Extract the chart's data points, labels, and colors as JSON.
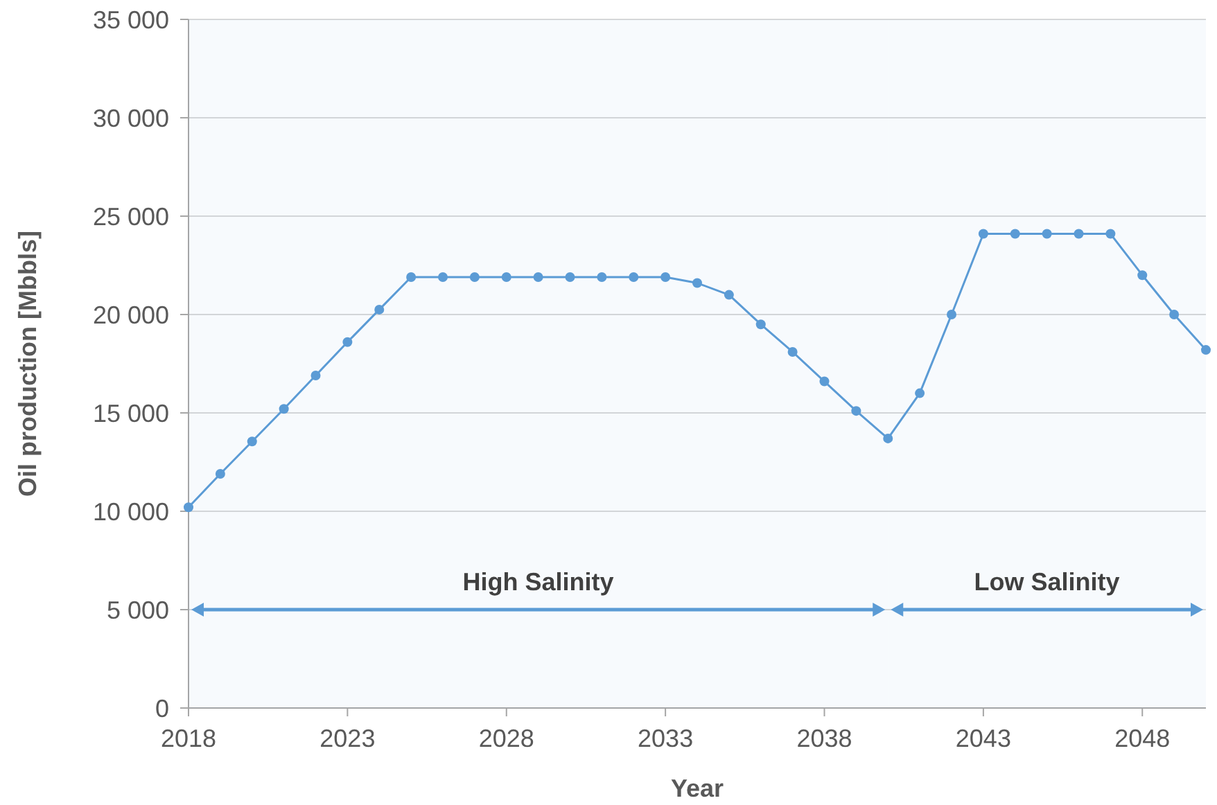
{
  "chart_data": {
    "type": "line",
    "xlabel": "Year",
    "ylabel": "Oil production [Mbbls]",
    "x": [
      2018,
      2019,
      2020,
      2021,
      2022,
      2023,
      2024,
      2025,
      2026,
      2027,
      2028,
      2029,
      2030,
      2031,
      2032,
      2033,
      2034,
      2035,
      2036,
      2037,
      2038,
      2039,
      2040,
      2041,
      2042,
      2043,
      2044,
      2045,
      2046,
      2047,
      2048,
      2049,
      2050
    ],
    "series": [
      {
        "color": "#5b9bd5",
        "values": [
          10200,
          11900,
          13550,
          15200,
          16900,
          18600,
          20250,
          21900,
          21900,
          21900,
          21900,
          21900,
          21900,
          21900,
          21900,
          21900,
          21600,
          21000,
          19500,
          18100,
          16600,
          15100,
          13700,
          16000,
          20000,
          24100,
          24100,
          24100,
          24100,
          24100,
          22000,
          20000,
          18200
        ]
      }
    ],
    "xlim": [
      2018,
      2050
    ],
    "xticks": [
      2018,
      2023,
      2028,
      2033,
      2038,
      2043,
      2048
    ],
    "ylim": [
      0,
      35000
    ],
    "yticks": [
      {
        "value": 0,
        "label": "0"
      },
      {
        "value": 5000,
        "label": "5 000"
      },
      {
        "value": 10000,
        "label": "10 000"
      },
      {
        "value": 15000,
        "label": "15 000"
      },
      {
        "value": 20000,
        "label": "20 000"
      },
      {
        "value": 25000,
        "label": "25 000"
      },
      {
        "value": 30000,
        "label": "30 000"
      },
      {
        "value": 35000,
        "label": "35 000"
      }
    ],
    "grid": "y",
    "marker": "circle",
    "line_style": "solid",
    "bands": [
      {
        "axis": "x",
        "from": 2018,
        "to": 2040,
        "label": "High Salinity",
        "color": "#5b9bd5"
      },
      {
        "axis": "x",
        "from": 2040,
        "to": 2050,
        "label": "Low Salinity",
        "color": "#5b9bd5"
      }
    ]
  }
}
